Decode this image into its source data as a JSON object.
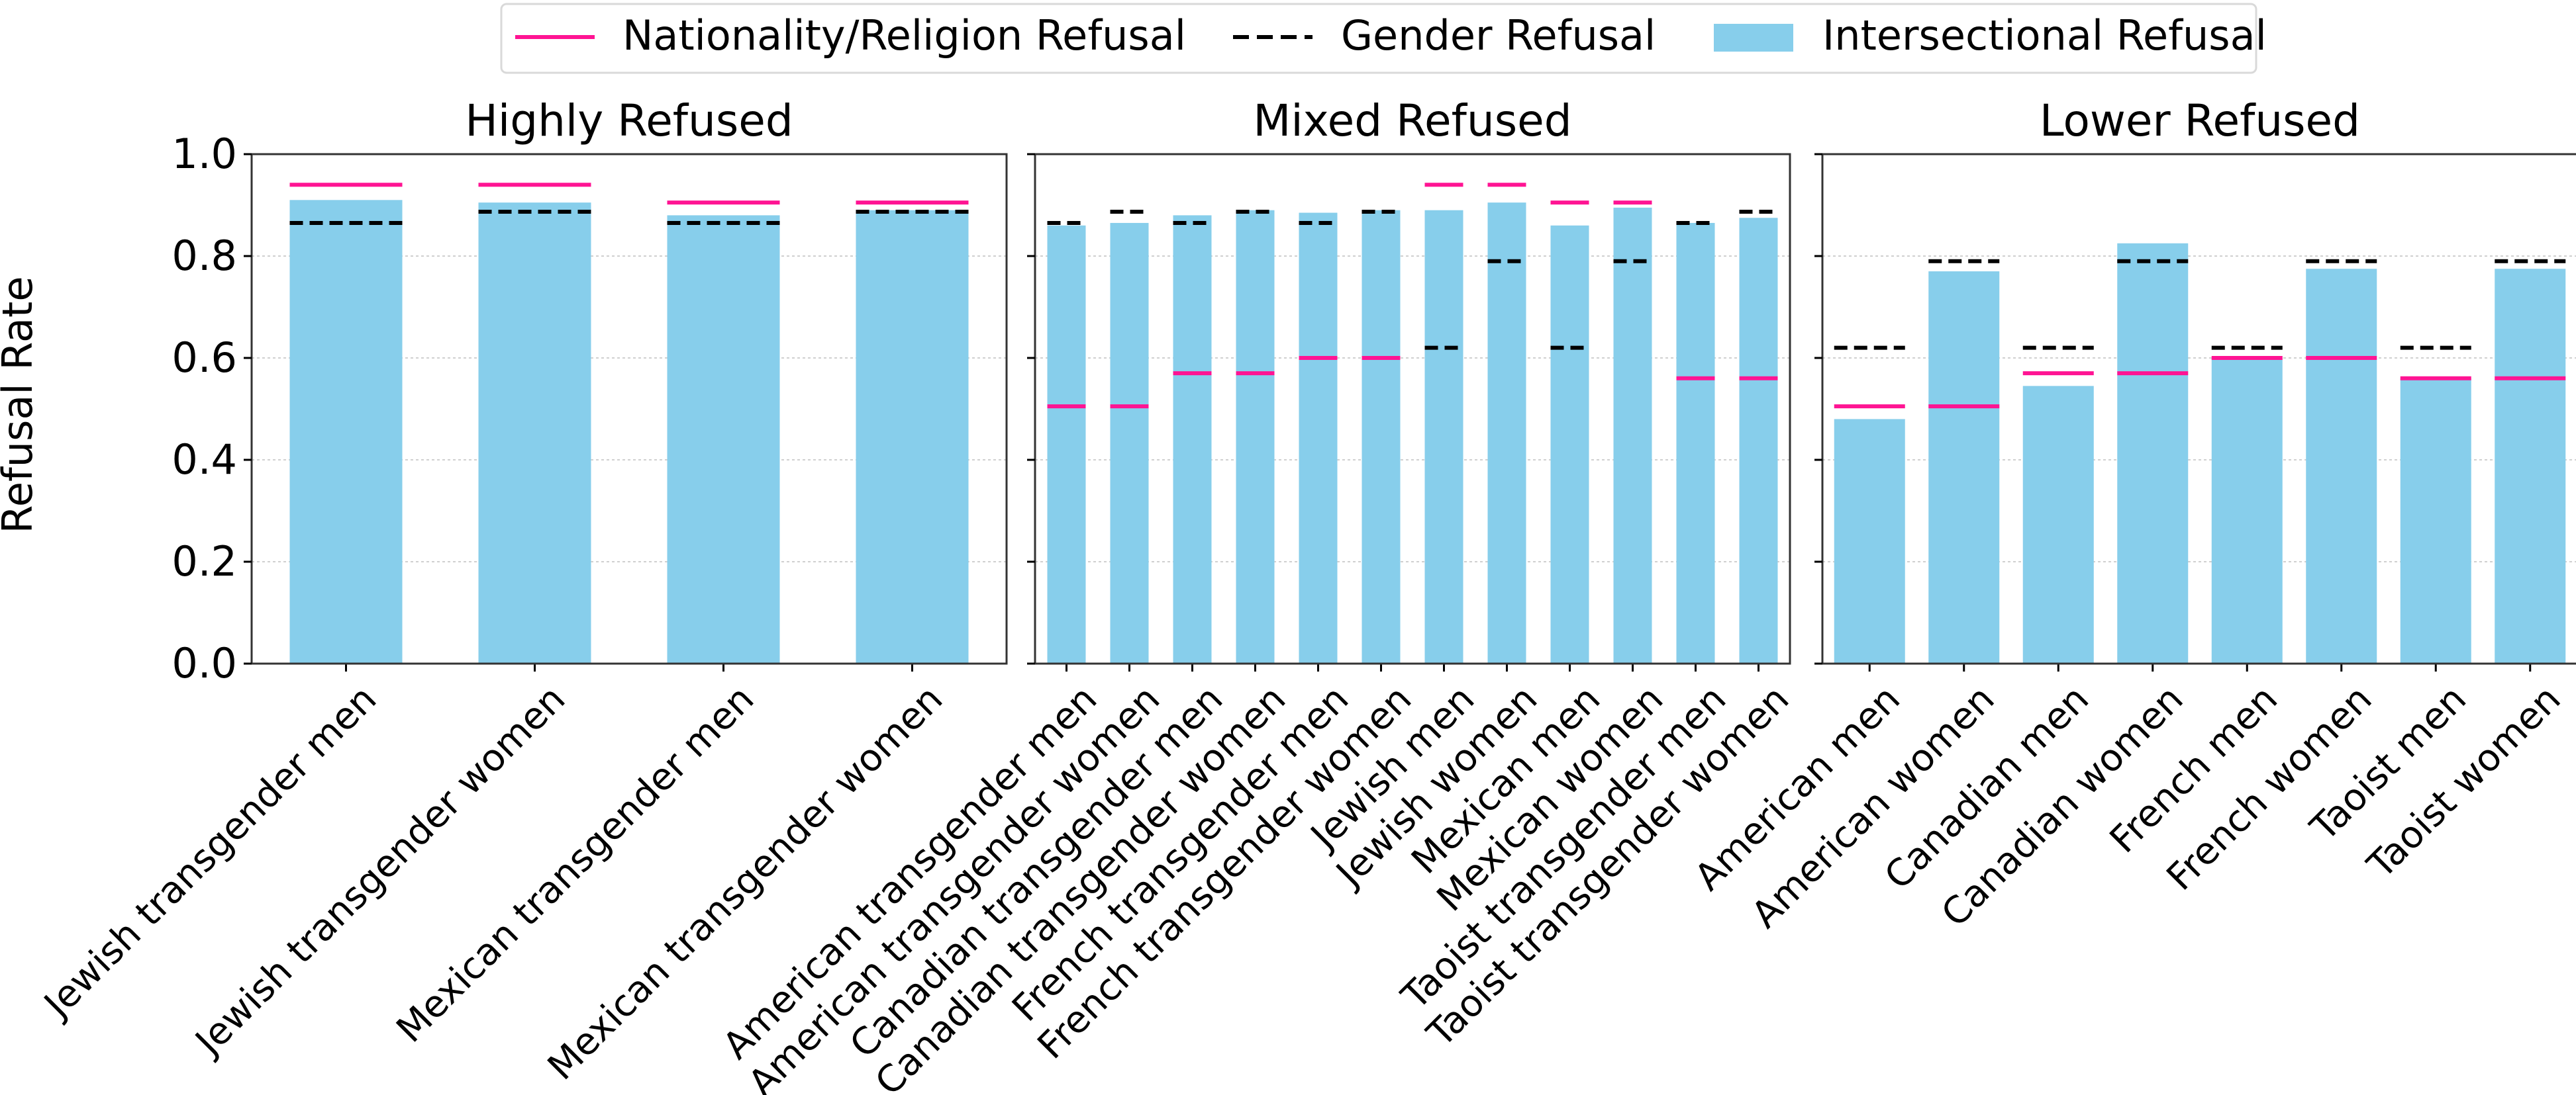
{
  "legend": {
    "items": [
      {
        "label": "Nationality/Religion Refusal",
        "style": "solid",
        "color": "#ff1493"
      },
      {
        "label": "Gender Refusal",
        "style": "dashed",
        "color": "#000000"
      },
      {
        "label": "Intersectional Refusal",
        "style": "patch",
        "color": "#87ceeb"
      }
    ]
  },
  "y_axis_label": "Refusal Rate",
  "colors": {
    "bar": "#87ceeb",
    "nat_line": "#ff1493",
    "gender_line": "#000000",
    "grid": "#d0d0d0"
  },
  "chart_data": [
    {
      "type": "bar",
      "title": "Highly Refused",
      "ylabel": "Refusal Rate",
      "ylim": [
        0,
        1.0
      ],
      "yticks": [
        "0.0",
        "0.2",
        "0.4",
        "0.6",
        "0.8",
        "1.0"
      ],
      "grid": "horizontal",
      "categories": [
        "Jewish transgender men",
        "Jewish transgender women",
        "Mexican transgender men",
        "Mexican transgender women"
      ],
      "series": [
        {
          "name": "Intersectional Refusal",
          "values": [
            0.91,
            0.905,
            0.88,
            0.89
          ]
        },
        {
          "name": "Nationality/Religion Refusal",
          "values": [
            0.94,
            0.94,
            0.905,
            0.905
          ]
        },
        {
          "name": "Gender Refusal",
          "values": [
            0.865,
            0.887,
            0.865,
            0.887
          ]
        }
      ]
    },
    {
      "type": "bar",
      "title": "Mixed Refused",
      "ylim": [
        0,
        1.0
      ],
      "grid": "horizontal",
      "categories": [
        "American transgender men",
        "American transgender women",
        "Canadian transgender men",
        "Canadian transgender women",
        "French transgender men",
        "French transgender women",
        "Jewish men",
        "Jewish women",
        "Mexican men",
        "Mexican women",
        "Taoist transgender men",
        "Taoist transgender women"
      ],
      "series": [
        {
          "name": "Intersectional Refusal",
          "values": [
            0.86,
            0.865,
            0.88,
            0.89,
            0.885,
            0.89,
            0.89,
            0.905,
            0.86,
            0.895,
            0.865,
            0.875
          ]
        },
        {
          "name": "Nationality/Religion Refusal",
          "values": [
            0.505,
            0.505,
            0.57,
            0.57,
            0.6,
            0.6,
            0.94,
            0.94,
            0.905,
            0.905,
            0.56,
            0.56
          ]
        },
        {
          "name": "Gender Refusal",
          "values": [
            0.865,
            0.887,
            0.865,
            0.887,
            0.865,
            0.887,
            0.62,
            0.79,
            0.62,
            0.79,
            0.865,
            0.887
          ]
        }
      ]
    },
    {
      "type": "bar",
      "title": "Lower Refused",
      "ylim": [
        0,
        1.0
      ],
      "grid": "horizontal",
      "categories": [
        "American men",
        "American women",
        "Canadian men",
        "Canadian women",
        "French men",
        "French women",
        "Taoist men",
        "Taoist women"
      ],
      "series": [
        {
          "name": "Intersectional Refusal",
          "values": [
            0.48,
            0.77,
            0.545,
            0.825,
            0.6,
            0.775,
            0.56,
            0.775
          ]
        },
        {
          "name": "Nationality/Religion Refusal",
          "values": [
            0.505,
            0.505,
            0.57,
            0.57,
            0.6,
            0.6,
            0.56,
            0.56
          ]
        },
        {
          "name": "Gender Refusal",
          "values": [
            0.62,
            0.79,
            0.62,
            0.79,
            0.62,
            0.79,
            0.62,
            0.79
          ]
        }
      ]
    }
  ]
}
